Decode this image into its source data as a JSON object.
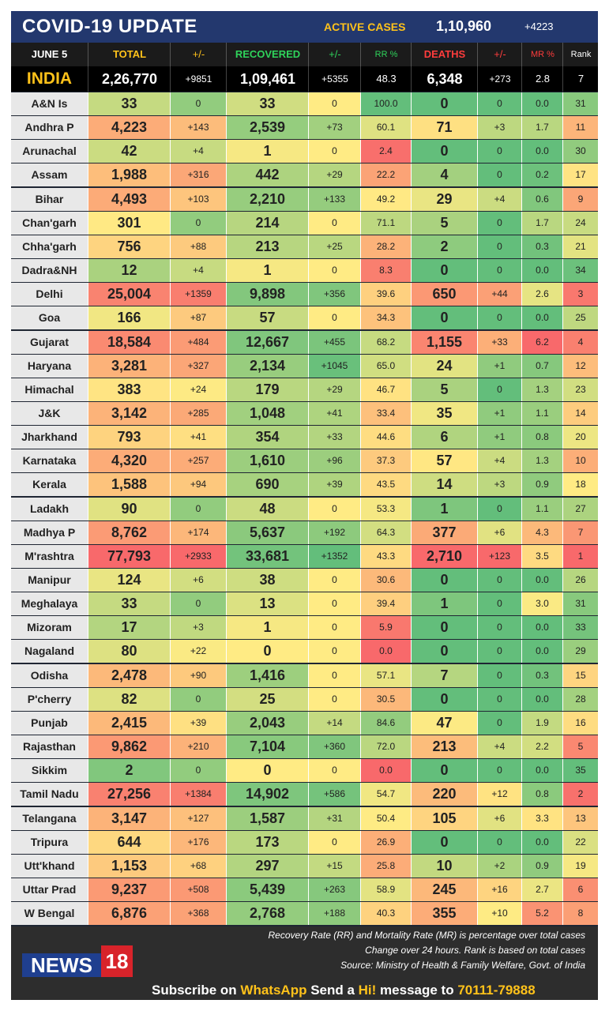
{
  "header": {
    "title": "COVID-19 UPDATE",
    "active_label": "ACTIVE CASES",
    "active_value": "1,10,960",
    "active_change": "+4223"
  },
  "columns": {
    "date": "JUNE 5",
    "total": "TOTAL",
    "total_chg": "+/-",
    "recovered": "RECOVERED",
    "recovered_chg": "+/-",
    "rr": "RR %",
    "deaths": "DEATHS",
    "deaths_chg": "+/-",
    "mr": "MR %",
    "rank": "Rank"
  },
  "india": {
    "name": "INDIA",
    "total": "2,26,770",
    "total_chg": "+9851",
    "recovered": "1,09,461",
    "recovered_chg": "+5355",
    "rr": "48.3",
    "deaths": "6,348",
    "deaths_chg": "+273",
    "mr": "2.8",
    "rank": "7"
  },
  "states": [
    {
      "name": "A&N Is",
      "total": "33",
      "tc": "0",
      "rec": "33",
      "rc": "0",
      "rr": "100.0",
      "deaths": "0",
      "dc": "0",
      "mr": "0.0",
      "rank": "31"
    },
    {
      "name": "Andhra P",
      "total": "4,223",
      "tc": "+143",
      "rec": "2,539",
      "rc": "+73",
      "rr": "60.1",
      "deaths": "71",
      "dc": "+3",
      "mr": "1.7",
      "rank": "11"
    },
    {
      "name": "Arunachal",
      "total": "42",
      "tc": "+4",
      "rec": "1",
      "rc": "0",
      "rr": "2.4",
      "deaths": "0",
      "dc": "0",
      "mr": "0.0",
      "rank": "30"
    },
    {
      "name": "Assam",
      "total": "1,988",
      "tc": "+316",
      "rec": "442",
      "rc": "+29",
      "rr": "22.2",
      "deaths": "4",
      "dc": "0",
      "mr": "0.2",
      "rank": "17"
    },
    {
      "name": "Bihar",
      "total": "4,493",
      "tc": "+103",
      "rec": "2,210",
      "rc": "+133",
      "rr": "49.2",
      "deaths": "29",
      "dc": "+4",
      "mr": "0.6",
      "rank": "9"
    },
    {
      "name": "Chan'garh",
      "total": "301",
      "tc": "0",
      "rec": "214",
      "rc": "0",
      "rr": "71.1",
      "deaths": "5",
      "dc": "0",
      "mr": "1.7",
      "rank": "24"
    },
    {
      "name": "Chha'garh",
      "total": "756",
      "tc": "+88",
      "rec": "213",
      "rc": "+25",
      "rr": "28.2",
      "deaths": "2",
      "dc": "0",
      "mr": "0.3",
      "rank": "21"
    },
    {
      "name": "Dadra&NH",
      "total": "12",
      "tc": "+4",
      "rec": "1",
      "rc": "0",
      "rr": "8.3",
      "deaths": "0",
      "dc": "0",
      "mr": "0.0",
      "rank": "34"
    },
    {
      "name": "Delhi",
      "total": "25,004",
      "tc": "+1359",
      "rec": "9,898",
      "rc": "+356",
      "rr": "39.6",
      "deaths": "650",
      "dc": "+44",
      "mr": "2.6",
      "rank": "3"
    },
    {
      "name": "Goa",
      "total": "166",
      "tc": "+87",
      "rec": "57",
      "rc": "0",
      "rr": "34.3",
      "deaths": "0",
      "dc": "0",
      "mr": "0.0",
      "rank": "25"
    },
    {
      "name": "Gujarat",
      "total": "18,584",
      "tc": "+484",
      "rec": "12,667",
      "rc": "+455",
      "rr": "68.2",
      "deaths": "1,155",
      "dc": "+33",
      "mr": "6.2",
      "rank": "4"
    },
    {
      "name": "Haryana",
      "total": "3,281",
      "tc": "+327",
      "rec": "2,134",
      "rc": "+1045",
      "rr": "65.0",
      "deaths": "24",
      "dc": "+1",
      "mr": "0.7",
      "rank": "12"
    },
    {
      "name": "Himachal",
      "total": "383",
      "tc": "+24",
      "rec": "179",
      "rc": "+29",
      "rr": "46.7",
      "deaths": "5",
      "dc": "0",
      "mr": "1.3",
      "rank": "23"
    },
    {
      "name": "J&K",
      "total": "3,142",
      "tc": "+285",
      "rec": "1,048",
      "rc": "+41",
      "rr": "33.4",
      "deaths": "35",
      "dc": "+1",
      "mr": "1.1",
      "rank": "14"
    },
    {
      "name": "Jharkhand",
      "total": "793",
      "tc": "+41",
      "rec": "354",
      "rc": "+33",
      "rr": "44.6",
      "deaths": "6",
      "dc": "+1",
      "mr": "0.8",
      "rank": "20"
    },
    {
      "name": "Karnataka",
      "total": "4,320",
      "tc": "+257",
      "rec": "1,610",
      "rc": "+96",
      "rr": "37.3",
      "deaths": "57",
      "dc": "+4",
      "mr": "1.3",
      "rank": "10"
    },
    {
      "name": "Kerala",
      "total": "1,588",
      "tc": "+94",
      "rec": "690",
      "rc": "+39",
      "rr": "43.5",
      "deaths": "14",
      "dc": "+3",
      "mr": "0.9",
      "rank": "18"
    },
    {
      "name": "Ladakh",
      "total": "90",
      "tc": "0",
      "rec": "48",
      "rc": "0",
      "rr": "53.3",
      "deaths": "1",
      "dc": "0",
      "mr": "1.1",
      "rank": "27"
    },
    {
      "name": "Madhya P",
      "total": "8,762",
      "tc": "+174",
      "rec": "5,637",
      "rc": "+192",
      "rr": "64.3",
      "deaths": "377",
      "dc": "+6",
      "mr": "4.3",
      "rank": "7"
    },
    {
      "name": "M'rashtra",
      "total": "77,793",
      "tc": "+2933",
      "rec": "33,681",
      "rc": "+1352",
      "rr": "43.3",
      "deaths": "2,710",
      "dc": "+123",
      "mr": "3.5",
      "rank": "1"
    },
    {
      "name": "Manipur",
      "total": "124",
      "tc": "+6",
      "rec": "38",
      "rc": "0",
      "rr": "30.6",
      "deaths": "0",
      "dc": "0",
      "mr": "0.0",
      "rank": "26"
    },
    {
      "name": "Meghalaya",
      "total": "33",
      "tc": "0",
      "rec": "13",
      "rc": "0",
      "rr": "39.4",
      "deaths": "1",
      "dc": "0",
      "mr": "3.0",
      "rank": "31"
    },
    {
      "name": "Mizoram",
      "total": "17",
      "tc": "+3",
      "rec": "1",
      "rc": "0",
      "rr": "5.9",
      "deaths": "0",
      "dc": "0",
      "mr": "0.0",
      "rank": "33"
    },
    {
      "name": "Nagaland",
      "total": "80",
      "tc": "+22",
      "rec": "0",
      "rc": "0",
      "rr": "0.0",
      "deaths": "0",
      "dc": "0",
      "mr": "0.0",
      "rank": "29"
    },
    {
      "name": "Odisha",
      "total": "2,478",
      "tc": "+90",
      "rec": "1,416",
      "rc": "0",
      "rr": "57.1",
      "deaths": "7",
      "dc": "0",
      "mr": "0.3",
      "rank": "15"
    },
    {
      "name": "P'cherry",
      "total": "82",
      "tc": "0",
      "rec": "25",
      "rc": "0",
      "rr": "30.5",
      "deaths": "0",
      "dc": "0",
      "mr": "0.0",
      "rank": "28"
    },
    {
      "name": "Punjab",
      "total": "2,415",
      "tc": "+39",
      "rec": "2,043",
      "rc": "+14",
      "rr": "84.6",
      "deaths": "47",
      "dc": "0",
      "mr": "1.9",
      "rank": "16"
    },
    {
      "name": "Rajasthan",
      "total": "9,862",
      "tc": "+210",
      "rec": "7,104",
      "rc": "+360",
      "rr": "72.0",
      "deaths": "213",
      "dc": "+4",
      "mr": "2.2",
      "rank": "5"
    },
    {
      "name": "Sikkim",
      "total": "2",
      "tc": "0",
      "rec": "0",
      "rc": "0",
      "rr": "0.0",
      "deaths": "0",
      "dc": "0",
      "mr": "0.0",
      "rank": "35"
    },
    {
      "name": "Tamil Nadu",
      "total": "27,256",
      "tc": "+1384",
      "rec": "14,902",
      "rc": "+586",
      "rr": "54.7",
      "deaths": "220",
      "dc": "+12",
      "mr": "0.8",
      "rank": "2"
    },
    {
      "name": "Telangana",
      "total": "3,147",
      "tc": "+127",
      "rec": "1,587",
      "rc": "+31",
      "rr": "50.4",
      "deaths": "105",
      "dc": "+6",
      "mr": "3.3",
      "rank": "13"
    },
    {
      "name": "Tripura",
      "total": "644",
      "tc": "+176",
      "rec": "173",
      "rc": "0",
      "rr": "26.9",
      "deaths": "0",
      "dc": "0",
      "mr": "0.0",
      "rank": "22"
    },
    {
      "name": "Utt'khand",
      "total": "1,153",
      "tc": "+68",
      "rec": "297",
      "rc": "+15",
      "rr": "25.8",
      "deaths": "10",
      "dc": "+2",
      "mr": "0.9",
      "rank": "19"
    },
    {
      "name": "Uttar Prad",
      "total": "9,237",
      "tc": "+508",
      "rec": "5,439",
      "rc": "+263",
      "rr": "58.9",
      "deaths": "245",
      "dc": "+16",
      "mr": "2.7",
      "rank": "6"
    },
    {
      "name": "W Bengal",
      "total": "6,876",
      "tc": "+368",
      "rec": "2,768",
      "rc": "+188",
      "rr": "40.3",
      "deaths": "355",
      "dc": "+10",
      "mr": "5.2",
      "rank": "8"
    }
  ],
  "footer": {
    "note1": "Recovery Rate (RR) and Mortality Rate (MR) is percentage over total cases",
    "note2": "Change over 24 hours. Rank is based on total cases",
    "note3": "Source: Ministry of Health & Family Welfare, Govt. of India",
    "logo_text": "NEWS",
    "logo_num": "18",
    "subscribe_pre": "Subscribe on ",
    "subscribe_app": "WhatsApp",
    "subscribe_mid": " Send a ",
    "subscribe_hi": "Hi!",
    "subscribe_post": " message to ",
    "subscribe_num": "70111-79888"
  },
  "colors": {
    "green": "#63be7b",
    "yellow": "#ffeb84",
    "red": "#f8696b",
    "header_gold": "#ffc21a",
    "header_green": "#2fd35b",
    "header_red": "#ff3c3c"
  }
}
